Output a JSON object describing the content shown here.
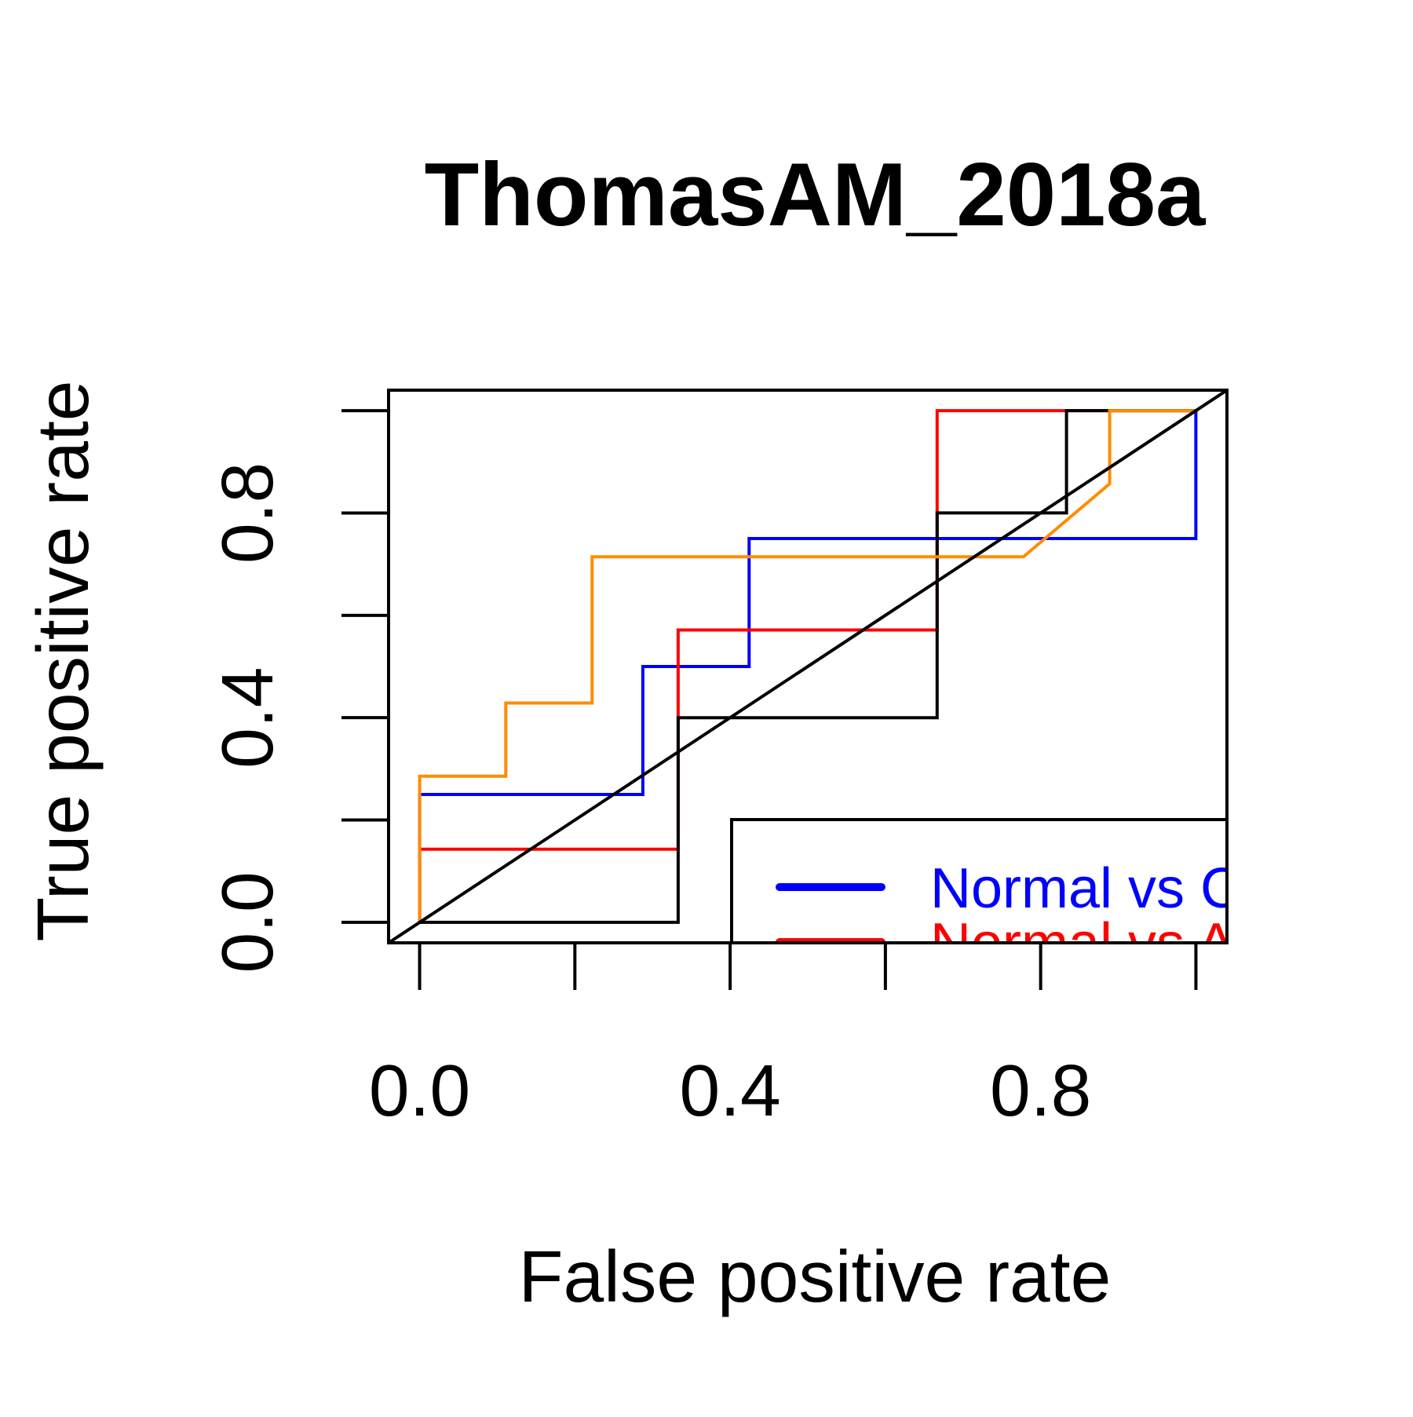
{
  "chart_data": {
    "type": "line",
    "title": "ThomasAM_2018a",
    "xlabel": "False positive rate",
    "ylabel": "True positive rate",
    "xlim": [
      -0.04,
      1.04
    ],
    "ylim": [
      -0.04,
      1.04
    ],
    "x_ticks": [
      0.0,
      0.2,
      0.4,
      0.6,
      0.8,
      1.0
    ],
    "x_tick_labels": [
      "0.0",
      "",
      "0.4",
      "",
      "0.8",
      ""
    ],
    "y_ticks": [
      0.0,
      0.2,
      0.4,
      0.6,
      0.8,
      1.0
    ],
    "y_tick_labels": [
      "0.0",
      "",
      "0.4",
      "",
      "0.8",
      ""
    ],
    "grid": false,
    "legend_position": "bottom-right (clipped)",
    "legend_entries": [
      {
        "label": "Normal vs C",
        "color": "#0000ff"
      },
      {
        "label": "Normal vs A",
        "color": "#ff0000"
      }
    ],
    "series": [
      {
        "color": "#0000ff",
        "x": [
          0.0,
          0.0,
          0.2875,
          0.2875,
          0.4245,
          0.4245,
          1.0,
          1.0
        ],
        "y": [
          0.0,
          0.25,
          0.25,
          0.5,
          0.5,
          0.75,
          0.75,
          1.0
        ]
      },
      {
        "color": "#ff0000",
        "x": [
          0.0,
          0.0,
          0.333,
          0.333,
          0.6667,
          0.6667,
          1.0
        ],
        "y": [
          0.0,
          0.1429,
          0.1429,
          0.5714,
          0.5714,
          1.0,
          1.0
        ]
      },
      {
        "color": "#000000",
        "x": [
          0.0,
          0.333,
          0.333,
          0.6667,
          0.6667,
          0.8333,
          0.8333,
          1.0
        ],
        "y": [
          0.0,
          0.0,
          0.4,
          0.4,
          0.8,
          0.8,
          1.0,
          1.0
        ]
      },
      {
        "color": "#ff8c00",
        "x": [
          0.0,
          0.0,
          0.111,
          0.111,
          0.2222,
          0.2222,
          0.7778,
          0.8889,
          0.8889,
          1.0
        ],
        "y": [
          0.0,
          0.2857,
          0.2857,
          0.4286,
          0.4286,
          0.7143,
          0.7143,
          0.8571,
          1.0,
          1.0
        ]
      },
      {
        "color": "#000000",
        "x": [
          -0.04,
          1.04
        ],
        "y": [
          -0.04,
          1.04
        ]
      }
    ]
  }
}
